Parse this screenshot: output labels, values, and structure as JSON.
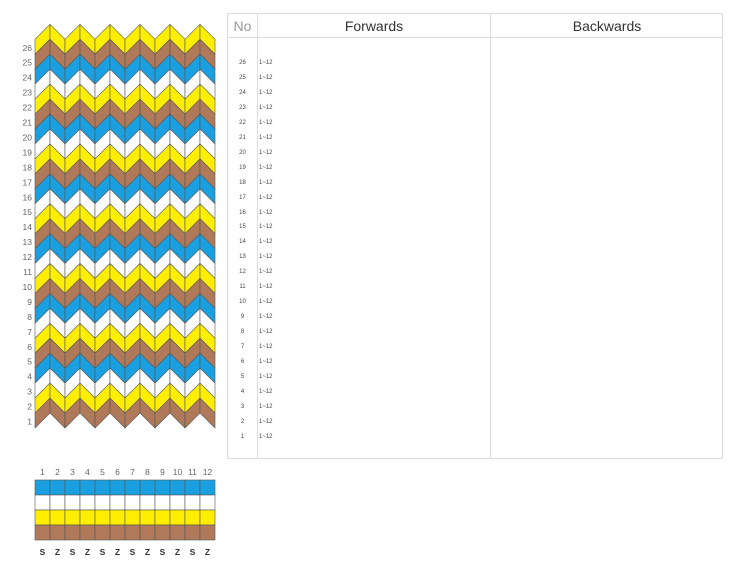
{
  "colors": {
    "brown": "#b07a5a",
    "white": "#ffffff",
    "blue": "#1aa0e0",
    "yellow": "#ffee00",
    "outline": "#555555"
  },
  "row_labels": [
    "26",
    "25",
    "24",
    "23",
    "22",
    "21",
    "20",
    "19",
    "18",
    "17",
    "16",
    "15",
    "14",
    "13",
    "12",
    "11",
    "10",
    "9",
    "8",
    "7",
    "6",
    "5",
    "4",
    "3",
    "2",
    "1"
  ],
  "row_colors": [
    "yellow",
    "brown",
    "blue",
    "white",
    "yellow",
    "brown",
    "blue",
    "white",
    "yellow",
    "brown",
    "blue",
    "white",
    "yellow",
    "brown",
    "blue",
    "white",
    "yellow",
    "brown",
    "blue",
    "white",
    "yellow",
    "brown",
    "blue",
    "white",
    "yellow",
    "brown"
  ],
  "card_labels": [
    "1",
    "2",
    "3",
    "4",
    "5",
    "6",
    "7",
    "8",
    "9",
    "10",
    "11",
    "12"
  ],
  "threading_rows": [
    "blue",
    "white",
    "yellow",
    "brown"
  ],
  "twist_labels": [
    "S",
    "Z",
    "S",
    "Z",
    "S",
    "Z",
    "S",
    "Z",
    "S",
    "Z",
    "S",
    "Z"
  ],
  "table": {
    "headers": {
      "no": "No",
      "forwards": "Forwards",
      "backwards": "Backwards"
    },
    "rows": [
      {
        "no": "26",
        "forwards": "1~12",
        "backwards": ""
      },
      {
        "no": "25",
        "forwards": "1~12",
        "backwards": ""
      },
      {
        "no": "24",
        "forwards": "1~12",
        "backwards": ""
      },
      {
        "no": "23",
        "forwards": "1~12",
        "backwards": ""
      },
      {
        "no": "22",
        "forwards": "1~12",
        "backwards": ""
      },
      {
        "no": "21",
        "forwards": "1~12",
        "backwards": ""
      },
      {
        "no": "20",
        "forwards": "1~12",
        "backwards": ""
      },
      {
        "no": "19",
        "forwards": "1~12",
        "backwards": ""
      },
      {
        "no": "18",
        "forwards": "1~12",
        "backwards": ""
      },
      {
        "no": "17",
        "forwards": "1~12",
        "backwards": ""
      },
      {
        "no": "16",
        "forwards": "1~12",
        "backwards": ""
      },
      {
        "no": "15",
        "forwards": "1~12",
        "backwards": ""
      },
      {
        "no": "14",
        "forwards": "1~12",
        "backwards": ""
      },
      {
        "no": "13",
        "forwards": "1~12",
        "backwards": ""
      },
      {
        "no": "12",
        "forwards": "1~12",
        "backwards": ""
      },
      {
        "no": "11",
        "forwards": "1~12",
        "backwards": ""
      },
      {
        "no": "10",
        "forwards": "1~12",
        "backwards": ""
      },
      {
        "no": "9",
        "forwards": "1~12",
        "backwards": ""
      },
      {
        "no": "8",
        "forwards": "1~12",
        "backwards": ""
      },
      {
        "no": "7",
        "forwards": "1~12",
        "backwards": ""
      },
      {
        "no": "6",
        "forwards": "1~12",
        "backwards": ""
      },
      {
        "no": "5",
        "forwards": "1~12",
        "backwards": ""
      },
      {
        "no": "4",
        "forwards": "1~12",
        "backwards": ""
      },
      {
        "no": "3",
        "forwards": "1~12",
        "backwards": ""
      },
      {
        "no": "2",
        "forwards": "1~12",
        "backwards": ""
      },
      {
        "no": "1",
        "forwards": "1~12",
        "backwards": ""
      }
    ]
  }
}
